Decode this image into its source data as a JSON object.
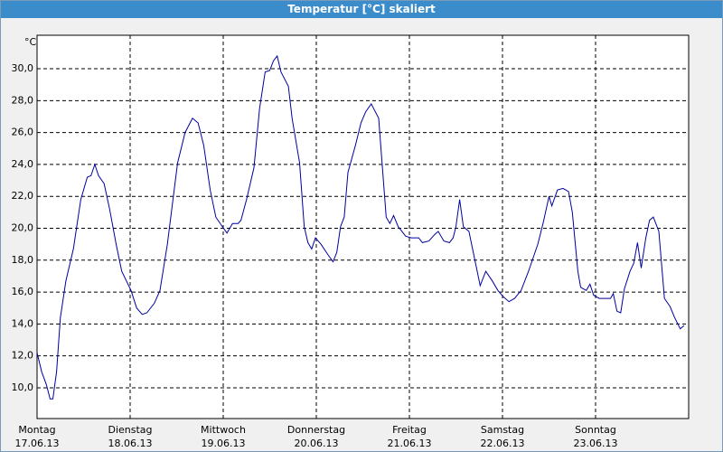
{
  "chart_data": {
    "type": "line",
    "title": "Temperatur [°C] skaliert",
    "unit": "°C",
    "xlim": [
      0,
      7
    ],
    "xticks": [
      {
        "value": 0,
        "label": "Montag",
        "date": "17.06.13"
      },
      {
        "value": 1,
        "label": "Dienstag",
        "date": "18.06.13"
      },
      {
        "value": 2,
        "label": "Mittwoch",
        "date": "19.06.13"
      },
      {
        "value": 3,
        "label": "Donnerstag",
        "date": "20.06.13"
      },
      {
        "value": 4,
        "label": "Freitag",
        "date": "21.06.13"
      },
      {
        "value": 5,
        "label": "Samstag",
        "date": "22.06.13"
      },
      {
        "value": 6,
        "label": "Sonntag",
        "date": "23.06.13"
      }
    ],
    "ylim": [
      8.07,
      32.1
    ],
    "yticks": [
      {
        "value": 10,
        "label": "10,0"
      },
      {
        "value": 12,
        "label": "12,0"
      },
      {
        "value": 14,
        "label": "14,0"
      },
      {
        "value": 16,
        "label": "16,0"
      },
      {
        "value": 18,
        "label": "18,0"
      },
      {
        "value": 20,
        "label": "20,0"
      },
      {
        "value": 22,
        "label": "22,0"
      },
      {
        "value": 24,
        "label": "24,0"
      },
      {
        "value": 26,
        "label": "26,0"
      },
      {
        "value": 28,
        "label": "28,0"
      },
      {
        "value": 30,
        "label": "30,0"
      }
    ],
    "grid": true,
    "color": "#0000a0",
    "x": [
      0,
      0.05,
      0.1,
      0.14,
      0.17,
      0.21,
      0.25,
      0.31,
      0.39,
      0.47,
      0.54,
      0.58,
      0.62,
      0.66,
      0.72,
      0.78,
      0.85,
      0.91,
      1.01,
      1.07,
      1.13,
      1.18,
      1.26,
      1.32,
      1.4,
      1.46,
      1.51,
      1.59,
      1.67,
      1.73,
      1.79,
      1.86,
      1.92,
      1.98,
      2.04,
      2.1,
      2.16,
      2.19,
      2.25,
      2.33,
      2.39,
      2.45,
      2.5,
      2.54,
      2.58,
      2.62,
      2.7,
      2.74,
      2.82,
      2.87,
      2.91,
      2.95,
      2.99,
      3.05,
      3.13,
      3.18,
      3.22,
      3.26,
      3.3,
      3.34,
      3.42,
      3.48,
      3.53,
      3.59,
      3.67,
      3.75,
      3.79,
      3.83,
      3.88,
      3.96,
      4.02,
      4.1,
      4.14,
      4.21,
      4.27,
      4.31,
      4.37,
      4.43,
      4.47,
      4.5,
      4.54,
      4.58,
      4.64,
      4.7,
      4.76,
      4.82,
      4.89,
      4.95,
      5.01,
      5.07,
      5.13,
      5.2,
      5.28,
      5.38,
      5.44,
      5.5,
      5.53,
      5.59,
      5.65,
      5.71,
      5.75,
      5.81,
      5.84,
      5.9,
      5.94,
      5.98,
      6.04,
      6.1,
      6.16,
      6.19,
      6.23,
      6.27,
      6.31,
      6.37,
      6.41,
      6.45,
      6.49,
      6.54,
      6.58,
      6.62,
      6.68,
      6.74,
      6.8,
      6.85,
      6.91,
      6.95
    ],
    "values": [
      12.2,
      11.0,
      10.2,
      9.3,
      9.3,
      11.0,
      14.4,
      16.7,
      18.7,
      21.8,
      23.2,
      23.3,
      24.0,
      23.3,
      22.8,
      21.2,
      19.0,
      17.3,
      16.1,
      15.0,
      14.6,
      14.7,
      15.3,
      16.1,
      19.0,
      21.8,
      24.1,
      26.0,
      26.9,
      26.6,
      25.2,
      22.4,
      20.7,
      20.2,
      19.7,
      20.3,
      20.3,
      20.5,
      21.8,
      23.8,
      27.5,
      29.8,
      29.9,
      30.5,
      30.8,
      29.8,
      28.9,
      26.9,
      24.1,
      20.1,
      19.1,
      18.7,
      19.4,
      19.0,
      18.3,
      17.9,
      18.5,
      20.1,
      20.7,
      23.5,
      25.2,
      26.6,
      27.3,
      27.8,
      26.9,
      20.7,
      20.3,
      20.8,
      20.1,
      19.5,
      19.4,
      19.4,
      19.1,
      19.2,
      19.6,
      19.8,
      19.2,
      19.1,
      19.4,
      20.1,
      21.8,
      20.1,
      19.8,
      18.1,
      16.4,
      17.3,
      16.7,
      16.1,
      15.7,
      15.4,
      15.6,
      16.1,
      17.3,
      19.0,
      20.4,
      22.0,
      21.4,
      22.4,
      22.5,
      22.3,
      21.0,
      17.3,
      16.3,
      16.1,
      16.5,
      15.8,
      15.6,
      15.6,
      15.6,
      15.9,
      14.8,
      14.7,
      16.2,
      17.3,
      17.8,
      19.1,
      17.5,
      19.4,
      20.5,
      20.7,
      19.8,
      15.6,
      15.1,
      14.4,
      13.7,
      13.9
    ]
  }
}
